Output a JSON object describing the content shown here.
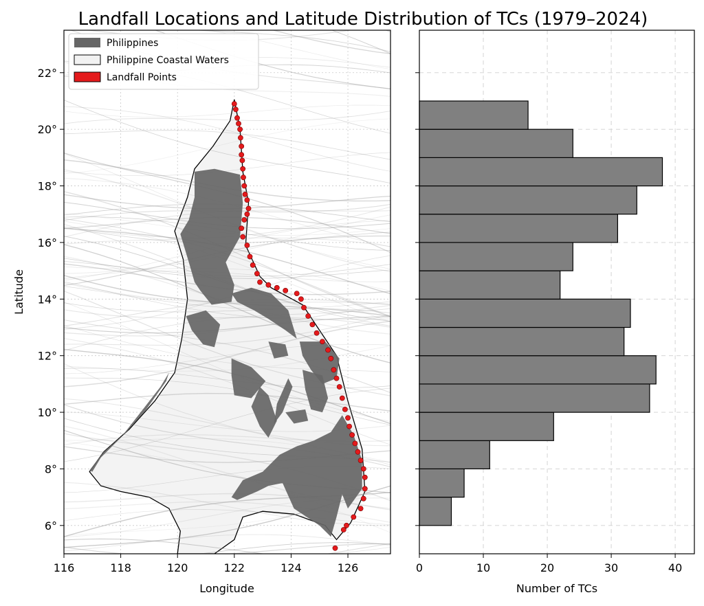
{
  "chart_data": [
    {
      "type": "map",
      "title": "Landfall Locations and Latitude Distribution of TCs (1979–2024)",
      "xlabel": "Longitude",
      "ylabel": "Latitude",
      "xlim": [
        116,
        127.5
      ],
      "ylim": [
        5,
        23.5
      ],
      "xticks": [
        116,
        118,
        120,
        122,
        124,
        126
      ],
      "xtick_labels": [
        "116",
        "118",
        "120",
        "122",
        "124",
        "126"
      ],
      "yticks": [
        6,
        8,
        10,
        12,
        14,
        16,
        18,
        20,
        22
      ],
      "ytick_labels": [
        "6°",
        "8°",
        "10°",
        "12°",
        "14°",
        "16°",
        "18°",
        "20°",
        "22°"
      ],
      "grid": true,
      "legend_position": "top-left",
      "legend": [
        {
          "label": "Philippines",
          "color": "#666666",
          "kind": "filled"
        },
        {
          "label": "Philippine Coastal Waters",
          "color": "#f2f2f2",
          "kind": "outlined"
        },
        {
          "label": "Landfall Points",
          "color": "#e41a1c",
          "kind": "outlined"
        }
      ],
      "coastal_waters_boundary": [
        [
          122.0,
          21.05
        ],
        [
          121.85,
          20.3
        ],
        [
          121.25,
          19.4
        ],
        [
          120.6,
          18.6
        ],
        [
          120.35,
          17.6
        ],
        [
          119.9,
          16.4
        ],
        [
          120.2,
          15.4
        ],
        [
          120.35,
          14.0
        ],
        [
          120.15,
          12.6
        ],
        [
          119.9,
          11.4
        ],
        [
          119.2,
          10.4
        ],
        [
          118.3,
          9.4
        ],
        [
          117.4,
          8.6
        ],
        [
          116.9,
          7.9
        ],
        [
          117.3,
          7.4
        ],
        [
          118.0,
          7.2
        ],
        [
          119.0,
          7.0
        ],
        [
          119.7,
          6.6
        ],
        [
          120.1,
          5.8
        ],
        [
          120.0,
          5.0
        ],
        [
          121.3,
          5.0
        ],
        [
          122.0,
          5.5
        ],
        [
          122.3,
          6.3
        ],
        [
          123.0,
          6.5
        ],
        [
          124.1,
          6.4
        ],
        [
          125.2,
          6.0
        ],
        [
          125.6,
          5.5
        ],
        [
          126.1,
          6.1
        ],
        [
          126.6,
          7.2
        ],
        [
          126.5,
          8.7
        ],
        [
          126.0,
          10.4
        ],
        [
          125.6,
          12.0
        ],
        [
          125.0,
          12.9
        ],
        [
          124.4,
          13.8
        ],
        [
          123.3,
          14.4
        ],
        [
          122.9,
          14.8
        ],
        [
          122.4,
          15.9
        ],
        [
          122.5,
          17.4
        ],
        [
          122.3,
          18.5
        ],
        [
          122.2,
          20.0
        ],
        [
          122.0,
          21.05
        ]
      ],
      "landmasses": [
        {
          "name": "Luzon",
          "outline": [
            [
              120.6,
              18.5
            ],
            [
              121.3,
              18.6
            ],
            [
              122.2,
              18.4
            ],
            [
              122.3,
              17.4
            ],
            [
              122.2,
              16.2
            ],
            [
              121.7,
              15.3
            ],
            [
              122.0,
              14.5
            ],
            [
              121.9,
              13.9
            ],
            [
              121.2,
              13.8
            ],
            [
              120.8,
              14.3
            ],
            [
              120.6,
              14.6
            ],
            [
              120.4,
              15.3
            ],
            [
              120.1,
              16.3
            ],
            [
              120.4,
              16.8
            ],
            [
              120.6,
              17.6
            ]
          ]
        },
        {
          "name": "Bicol",
          "outline": [
            [
              121.9,
              14.2
            ],
            [
              122.6,
              14.4
            ],
            [
              123.3,
              14.2
            ],
            [
              123.9,
              13.6
            ],
            [
              124.2,
              12.6
            ],
            [
              123.8,
              12.9
            ],
            [
              123.2,
              13.3
            ],
            [
              122.7,
              13.6
            ],
            [
              122.1,
              13.9
            ]
          ]
        },
        {
          "name": "Mindoro",
          "outline": [
            [
              120.3,
              13.4
            ],
            [
              121.0,
              13.6
            ],
            [
              121.5,
              13.1
            ],
            [
              121.3,
              12.3
            ],
            [
              120.9,
              12.4
            ],
            [
              120.5,
              12.9
            ]
          ]
        },
        {
          "name": "Palawan",
          "outline": [
            [
              116.9,
              7.95
            ],
            [
              117.4,
              8.6
            ],
            [
              118.2,
              9.3
            ],
            [
              118.9,
              10.1
            ],
            [
              119.6,
              11.1
            ],
            [
              119.7,
              11.4
            ],
            [
              119.4,
              10.9
            ],
            [
              118.7,
              10.0
            ],
            [
              118.0,
              9.1
            ],
            [
              117.3,
              8.4
            ],
            [
              117.0,
              7.9
            ]
          ]
        },
        {
          "name": "Panay",
          "outline": [
            [
              121.9,
              11.9
            ],
            [
              122.6,
              11.6
            ],
            [
              123.1,
              11.1
            ],
            [
              122.6,
              10.5
            ],
            [
              122.0,
              10.6
            ],
            [
              121.9,
              11.3
            ]
          ]
        },
        {
          "name": "Negros",
          "outline": [
            [
              122.9,
              10.9
            ],
            [
              123.2,
              10.6
            ],
            [
              123.5,
              9.7
            ],
            [
              123.2,
              9.1
            ],
            [
              122.9,
              9.5
            ],
            [
              122.6,
              10.2
            ]
          ]
        },
        {
          "name": "Cebu",
          "outline": [
            [
              123.9,
              11.2
            ],
            [
              124.05,
              10.9
            ],
            [
              123.7,
              10.0
            ],
            [
              123.4,
              9.6
            ],
            [
              123.5,
              10.3
            ]
          ]
        },
        {
          "name": "Bohol",
          "outline": [
            [
              123.8,
              10.0
            ],
            [
              124.5,
              10.1
            ],
            [
              124.6,
              9.7
            ],
            [
              124.1,
              9.6
            ]
          ]
        },
        {
          "name": "Samar",
          "outline": [
            [
              124.3,
              12.5
            ],
            [
              125.2,
              12.5
            ],
            [
              125.7,
              11.9
            ],
            [
              125.6,
              11.2
            ],
            [
              125.1,
              11.0
            ],
            [
              124.7,
              11.5
            ],
            [
              124.4,
              12.0
            ]
          ]
        },
        {
          "name": "Leyte",
          "outline": [
            [
              124.4,
              11.5
            ],
            [
              125.1,
              11.3
            ],
            [
              125.3,
              10.5
            ],
            [
              125.1,
              10.0
            ],
            [
              124.7,
              10.1
            ],
            [
              124.5,
              10.8
            ]
          ]
        },
        {
          "name": "Masbate",
          "outline": [
            [
              123.2,
              12.5
            ],
            [
              123.8,
              12.4
            ],
            [
              123.9,
              12.0
            ],
            [
              123.4,
              11.9
            ]
          ]
        },
        {
          "name": "Mindanao",
          "outline": [
            [
              121.9,
              7.0
            ],
            [
              122.3,
              7.6
            ],
            [
              123.0,
              7.9
            ],
            [
              123.6,
              8.5
            ],
            [
              124.2,
              8.8
            ],
            [
              124.8,
              9.0
            ],
            [
              125.4,
              9.3
            ],
            [
              125.8,
              9.9
            ],
            [
              126.2,
              9.2
            ],
            [
              126.5,
              8.3
            ],
            [
              126.5,
              7.3
            ],
            [
              126.0,
              6.6
            ],
            [
              125.8,
              7.1
            ],
            [
              125.6,
              6.3
            ],
            [
              125.4,
              5.6
            ],
            [
              125.0,
              6.0
            ],
            [
              124.1,
              6.6
            ],
            [
              123.7,
              7.5
            ],
            [
              123.2,
              7.4
            ],
            [
              122.8,
              7.2
            ],
            [
              122.1,
              6.9
            ]
          ]
        }
      ],
      "landfall_points": [
        [
          122.0,
          20.9
        ],
        [
          122.05,
          20.7
        ],
        [
          122.1,
          20.4
        ],
        [
          122.15,
          20.2
        ],
        [
          122.2,
          20.0
        ],
        [
          122.22,
          19.7
        ],
        [
          122.25,
          19.4
        ],
        [
          122.25,
          19.1
        ],
        [
          122.28,
          18.9
        ],
        [
          122.3,
          18.6
        ],
        [
          122.32,
          18.3
        ],
        [
          122.35,
          18.0
        ],
        [
          122.38,
          17.7
        ],
        [
          122.45,
          17.5
        ],
        [
          122.5,
          17.2
        ],
        [
          122.45,
          17.0
        ],
        [
          122.35,
          16.8
        ],
        [
          122.25,
          16.5
        ],
        [
          122.3,
          16.2
        ],
        [
          122.45,
          15.9
        ],
        [
          122.55,
          15.5
        ],
        [
          122.65,
          15.2
        ],
        [
          122.8,
          14.9
        ],
        [
          122.9,
          14.6
        ],
        [
          123.2,
          14.5
        ],
        [
          123.5,
          14.4
        ],
        [
          123.8,
          14.3
        ],
        [
          124.2,
          14.2
        ],
        [
          124.35,
          14.0
        ],
        [
          124.45,
          13.7
        ],
        [
          124.6,
          13.4
        ],
        [
          124.75,
          13.1
        ],
        [
          124.9,
          12.8
        ],
        [
          125.1,
          12.5
        ],
        [
          125.3,
          12.2
        ],
        [
          125.4,
          11.9
        ],
        [
          125.5,
          11.5
        ],
        [
          125.6,
          11.2
        ],
        [
          125.7,
          10.9
        ],
        [
          125.8,
          10.5
        ],
        [
          125.9,
          10.1
        ],
        [
          126.0,
          9.8
        ],
        [
          126.05,
          9.5
        ],
        [
          126.15,
          9.2
        ],
        [
          126.25,
          8.9
        ],
        [
          126.35,
          8.6
        ],
        [
          126.45,
          8.3
        ],
        [
          126.55,
          8.0
        ],
        [
          126.6,
          7.7
        ],
        [
          126.6,
          7.3
        ],
        [
          126.55,
          6.95
        ],
        [
          126.45,
          6.6
        ],
        [
          126.2,
          6.3
        ],
        [
          125.95,
          6.0
        ],
        [
          125.85,
          5.85
        ],
        [
          125.55,
          5.2
        ]
      ],
      "track_style": "many faint grey cyclone tracks"
    },
    {
      "type": "bar",
      "orientation": "horizontal",
      "xlabel": "Number of TCs",
      "ylabel": "",
      "xlim": [
        0,
        43
      ],
      "ylim": [
        5,
        23.5
      ],
      "xticks": [
        0,
        10,
        20,
        30,
        40
      ],
      "xtick_labels": [
        "0",
        "10",
        "20",
        "30",
        "40"
      ],
      "yticks": [
        6,
        8,
        10,
        12,
        14,
        16,
        18,
        20,
        22
      ],
      "grid": true,
      "bar_color": "#808080",
      "bins": [
        {
          "from": 6,
          "to": 7,
          "value": 5
        },
        {
          "from": 7,
          "to": 8,
          "value": 7
        },
        {
          "from": 8,
          "to": 9,
          "value": 11
        },
        {
          "from": 9,
          "to": 10,
          "value": 21
        },
        {
          "from": 10,
          "to": 11,
          "value": 36
        },
        {
          "from": 11,
          "to": 12,
          "value": 37
        },
        {
          "from": 12,
          "to": 13,
          "value": 32
        },
        {
          "from": 13,
          "to": 14,
          "value": 33
        },
        {
          "from": 14,
          "to": 15,
          "value": 22
        },
        {
          "from": 15,
          "to": 16,
          "value": 24
        },
        {
          "from": 16,
          "to": 17,
          "value": 31
        },
        {
          "from": 17,
          "to": 18,
          "value": 34
        },
        {
          "from": 18,
          "to": 19,
          "value": 38
        },
        {
          "from": 19,
          "to": 20,
          "value": 24
        },
        {
          "from": 20,
          "to": 21,
          "value": 17
        }
      ]
    }
  ]
}
